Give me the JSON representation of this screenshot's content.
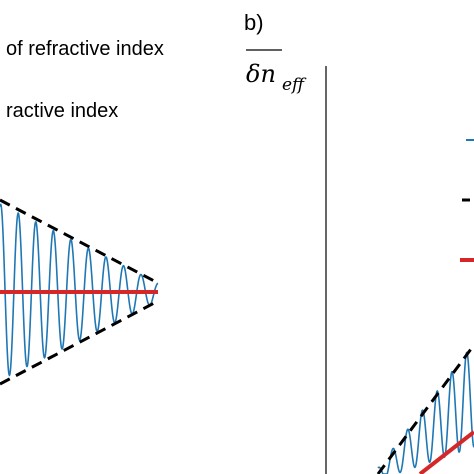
{
  "chart_data": [
    {
      "type": "line",
      "panel": "a",
      "legend": {
        "entries": [
          "of refractive index",
          "ractive index"
        ]
      },
      "series": [
        {
          "style": "oscillation",
          "color": "#1f77b4",
          "envelope_start": 1.0,
          "envelope_end": 0.12,
          "cycles": 9
        },
        {
          "style": "envelope",
          "color": "#000000",
          "dash": true
        },
        {
          "style": "mean",
          "color": "#d62728",
          "value": 0
        }
      ]
    },
    {
      "type": "line",
      "panel": "b",
      "label": "b)",
      "ylabel": {
        "main": "δn",
        "sub": "eff"
      },
      "legend_colors": [
        "#1f77b4",
        "#000000",
        "#d62728"
      ],
      "series": [
        {
          "style": "oscillation",
          "color": "#1f77b4",
          "trend": "rising"
        },
        {
          "style": "envelope",
          "color": "#000000",
          "dash": true
        },
        {
          "style": "mean",
          "color": "#d62728",
          "trend": "rising"
        }
      ]
    }
  ],
  "colors": {
    "oscillation": "#1f77b4",
    "envelope": "#000000",
    "mean": "#d62728"
  }
}
